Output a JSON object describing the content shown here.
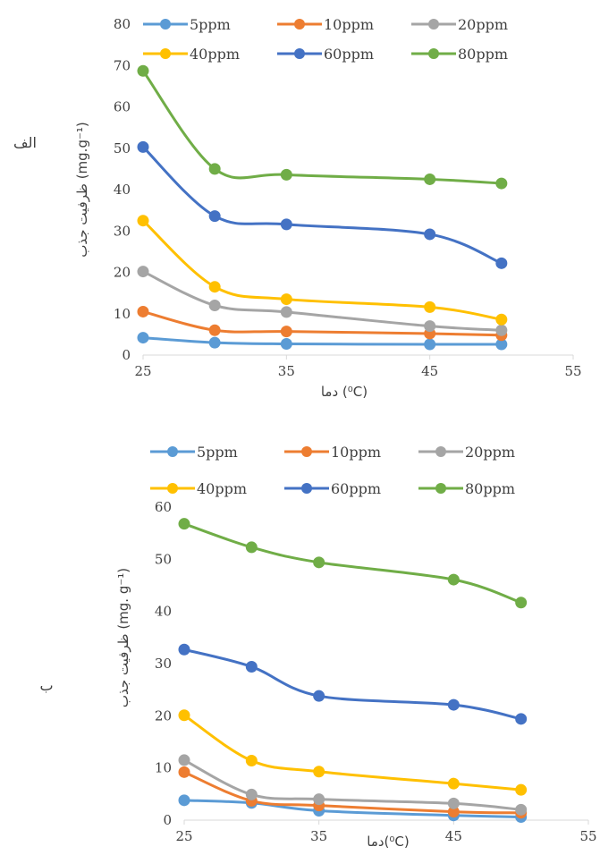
{
  "colors": {
    "5ppm": "#5B9BD5",
    "10ppm": "#ED7D31",
    "20ppm": "#A5A5A5",
    "40ppm": "#FFC000",
    "60ppm": "#4472C4",
    "80ppm": "#70AD47"
  },
  "chart_data": [
    {
      "type": "line",
      "panel_label": "الف",
      "xlabel": "دما (⁰C)",
      "ylabel": "ظرفیت جذب (mg.g⁻¹)",
      "xlim": [
        25,
        55
      ],
      "ylim": [
        0,
        80
      ],
      "x_ticks": [
        25,
        35,
        45,
        55
      ],
      "y_ticks": [
        0,
        10,
        20,
        30,
        40,
        50,
        60,
        70,
        80
      ],
      "x": [
        25,
        30,
        35,
        45,
        50
      ],
      "legend_position": "top",
      "series": [
        {
          "name": "5ppm",
          "values": [
            4.2,
            3.0,
            2.7,
            2.6,
            2.6
          ]
        },
        {
          "name": "10ppm",
          "values": [
            10.5,
            6.0,
            5.7,
            5.2,
            4.8
          ]
        },
        {
          "name": "20ppm",
          "values": [
            20.2,
            12.0,
            10.4,
            7.0,
            6.0
          ]
        },
        {
          "name": "40ppm",
          "values": [
            32.5,
            16.5,
            13.5,
            11.6,
            8.6
          ]
        },
        {
          "name": "60ppm",
          "values": [
            50.3,
            33.6,
            31.6,
            29.2,
            22.2
          ]
        },
        {
          "name": "80ppm",
          "values": [
            68.7,
            45.0,
            43.6,
            42.5,
            41.5
          ]
        }
      ]
    },
    {
      "type": "line",
      "panel_label": "ب",
      "xlabel": "دما(⁰C)",
      "ylabel": "ظرفیت جذب (mg. g⁻¹)",
      "xlim": [
        25,
        55
      ],
      "ylim": [
        0,
        60
      ],
      "x_ticks": [
        25,
        35,
        45,
        55
      ],
      "y_ticks": [
        0,
        10,
        20,
        30,
        40,
        50,
        60
      ],
      "x": [
        25,
        30,
        35,
        45,
        50
      ],
      "legend_position": "top",
      "series": [
        {
          "name": "5ppm",
          "values": [
            3.8,
            3.3,
            1.8,
            0.9,
            0.6
          ]
        },
        {
          "name": "10ppm",
          "values": [
            9.2,
            3.7,
            2.8,
            1.6,
            1.4
          ]
        },
        {
          "name": "20ppm",
          "values": [
            11.5,
            4.9,
            4.0,
            3.2,
            2.0
          ]
        },
        {
          "name": "40ppm",
          "values": [
            20.1,
            11.4,
            9.3,
            7.0,
            5.8
          ]
        },
        {
          "name": "60ppm",
          "values": [
            32.7,
            29.4,
            23.8,
            22.1,
            19.4
          ]
        },
        {
          "name": "80ppm",
          "values": [
            56.8,
            52.3,
            49.4,
            46.1,
            41.7
          ]
        }
      ]
    }
  ]
}
